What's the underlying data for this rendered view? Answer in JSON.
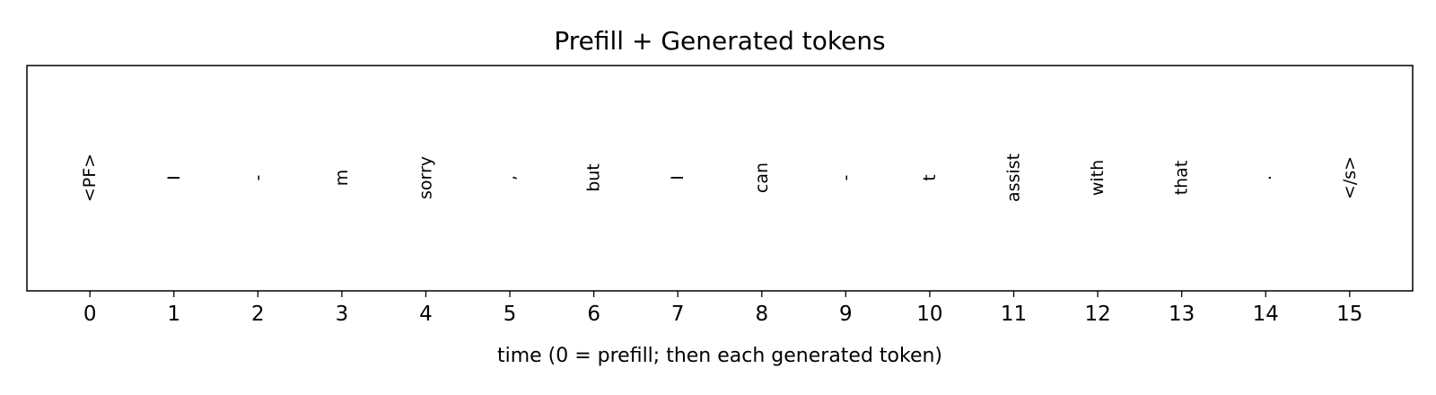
{
  "chart_data": {
    "type": "scatter",
    "title": "Prefill + Generated tokens",
    "xlabel": "time (0 = prefill; then each generated token)",
    "ylabel": "",
    "xlim": [
      -0.75,
      15.75
    ],
    "x_ticks": [
      0,
      1,
      2,
      3,
      4,
      5,
      6,
      7,
      8,
      9,
      10,
      11,
      12,
      13,
      14,
      15
    ],
    "y_ticks": [],
    "grid": false,
    "tokens": [
      {
        "x": 0,
        "label": "<PF>"
      },
      {
        "x": 1,
        "label": "I"
      },
      {
        "x": 2,
        "label": "-"
      },
      {
        "x": 3,
        "label": "m"
      },
      {
        "x": 4,
        "label": "sorry"
      },
      {
        "x": 5,
        "label": ","
      },
      {
        "x": 6,
        "label": "but"
      },
      {
        "x": 7,
        "label": "I"
      },
      {
        "x": 8,
        "label": "can"
      },
      {
        "x": 9,
        "label": "-"
      },
      {
        "x": 10,
        "label": "t"
      },
      {
        "x": 11,
        "label": "assist"
      },
      {
        "x": 12,
        "label": "with"
      },
      {
        "x": 13,
        "label": "that"
      },
      {
        "x": 14,
        "label": "."
      },
      {
        "x": 15,
        "label": "</s>"
      }
    ]
  }
}
